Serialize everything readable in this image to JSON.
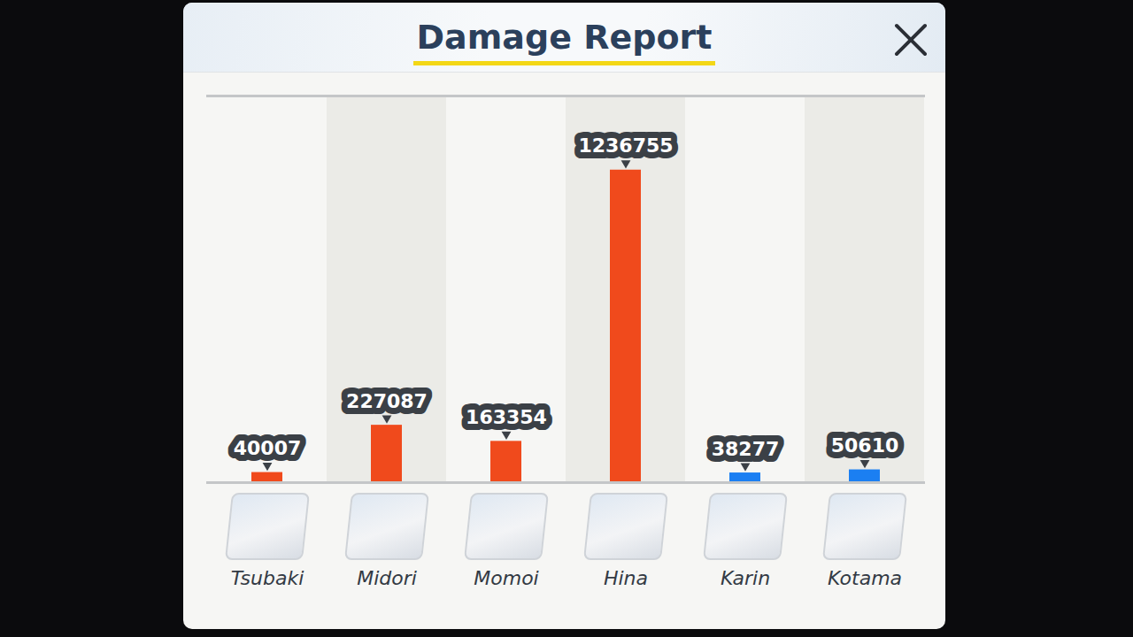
{
  "chart_data": {
    "type": "bar",
    "title": "Damage Report",
    "categories": [
      "Tsubaki",
      "Midori",
      "Momoi",
      "Hina",
      "Karin",
      "Kotama"
    ],
    "values": [
      40007,
      227087,
      163354,
      1236755,
      38277,
      50610
    ],
    "colors": [
      "#f04a1c",
      "#f04a1c",
      "#f04a1c",
      "#f04a1c",
      "#1b7ff2",
      "#1b7ff2"
    ],
    "ylim": [
      0,
      1530000
    ],
    "yticks": [],
    "tick_labels": "x",
    "data_labels": true,
    "grid": false
  }
}
